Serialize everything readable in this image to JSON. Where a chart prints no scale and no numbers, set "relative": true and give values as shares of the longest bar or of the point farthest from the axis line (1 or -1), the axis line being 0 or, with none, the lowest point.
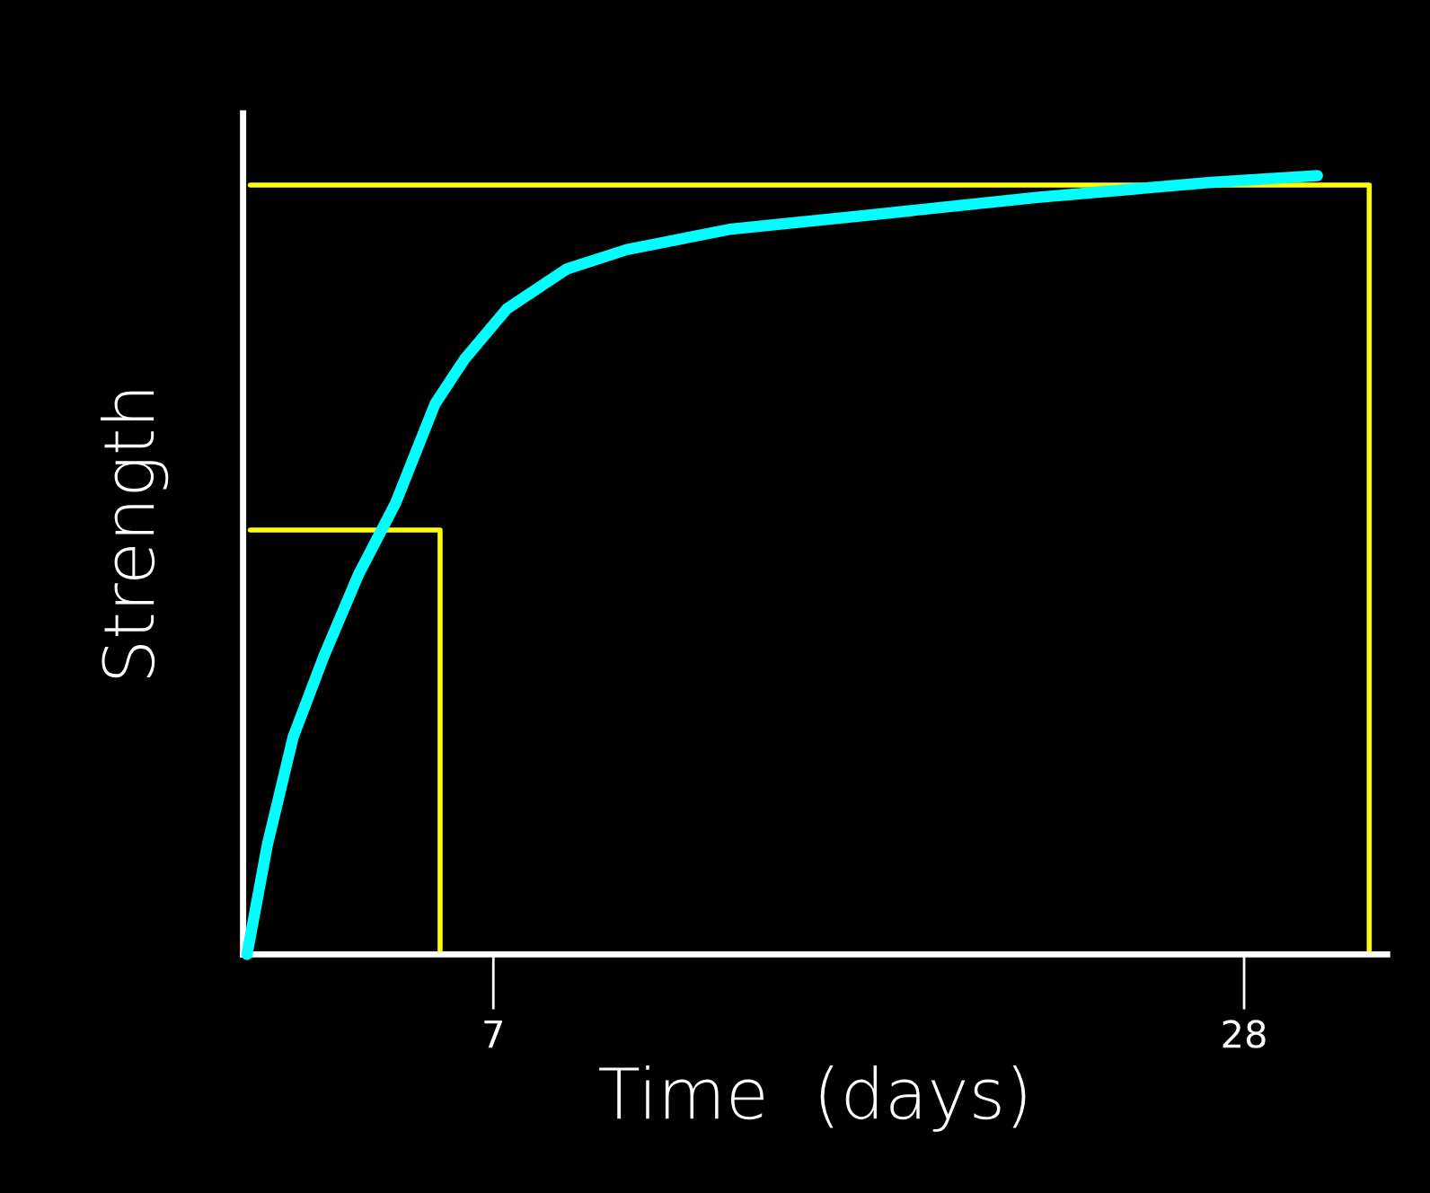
{
  "chart_data": {
    "type": "line",
    "relative": true,
    "xlabel": "Time  (days)",
    "ylabel": "Strength",
    "xlim": [
      0,
      32
    ],
    "xticks": [
      7,
      28
    ],
    "grid": false,
    "marker": "none",
    "line_style": "solid",
    "series": [
      {
        "color": "#00ffff",
        "x": [
          0.11,
          0.68,
          1.4,
          2.26,
          3.22,
          4.27,
          5.37,
          6.19,
          7.38,
          9.05,
          10.73,
          13.6,
          17.43,
          22.21,
          26.99,
          30.05
        ],
        "values": [
          0,
          0.141,
          0.279,
          0.383,
          0.487,
          0.58,
          0.707,
          0.764,
          0.829,
          0.88,
          0.905,
          0.931,
          0.949,
          0.972,
          0.991,
          1.0
        ]
      },
      {
        "color": "#ffff00",
        "x": [
          0.2,
          5.51,
          5.51
        ],
        "values": [
          0.545,
          0.545,
          0
        ]
      },
      {
        "color": "#ffff00",
        "x": [
          0.2,
          31.5,
          31.5
        ],
        "values": [
          0.988,
          0.988,
          0
        ]
      }
    ]
  }
}
